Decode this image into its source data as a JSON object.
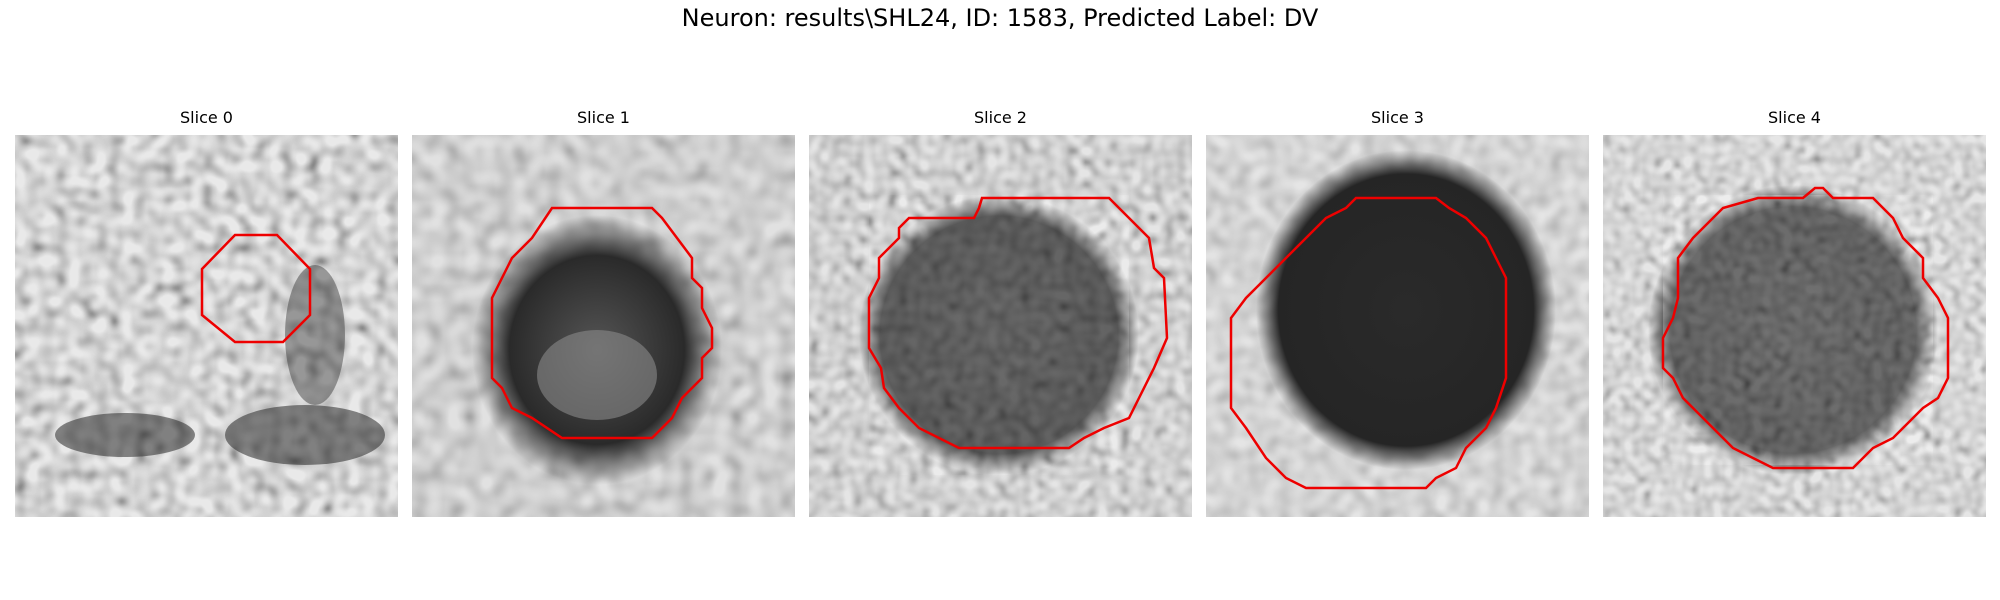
{
  "figure": {
    "title": "Neuron: results\\SHL24, ID: 1583, Predicted Label: DV"
  },
  "contour_color": "#ee0000",
  "slices": [
    {
      "title": "Slice 0"
    },
    {
      "title": "Slice 1"
    },
    {
      "title": "Slice 2"
    },
    {
      "title": "Slice 3"
    },
    {
      "title": "Slice 4"
    }
  ]
}
